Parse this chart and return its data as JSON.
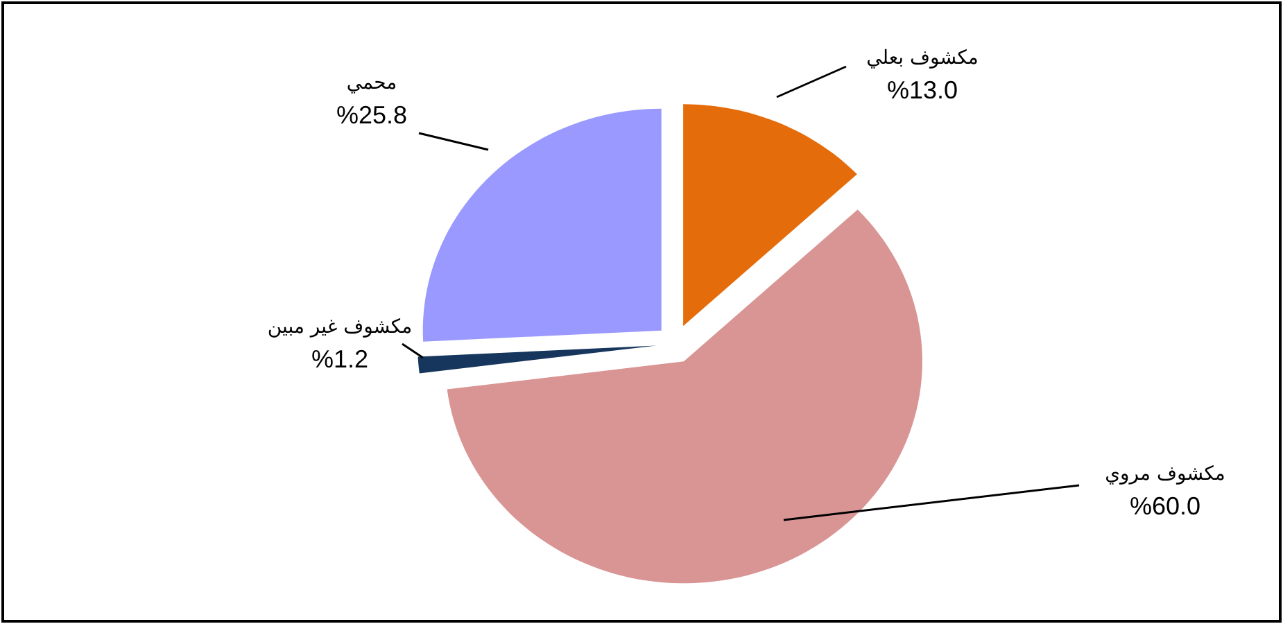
{
  "chart_data": {
    "type": "pie",
    "categories": [
      "مكشوف بعلي",
      "مكشوف مروي",
      "مكشوف غير مبين",
      "محمي"
    ],
    "values": [
      13.0,
      60.0,
      1.2,
      25.8
    ],
    "colors": [
      "#e46c0a",
      "#d99594",
      "#17365d",
      "#9999ff"
    ],
    "value_labels": [
      "%13.0",
      "%60.0",
      "%1.2",
      "%25.8"
    ]
  }
}
